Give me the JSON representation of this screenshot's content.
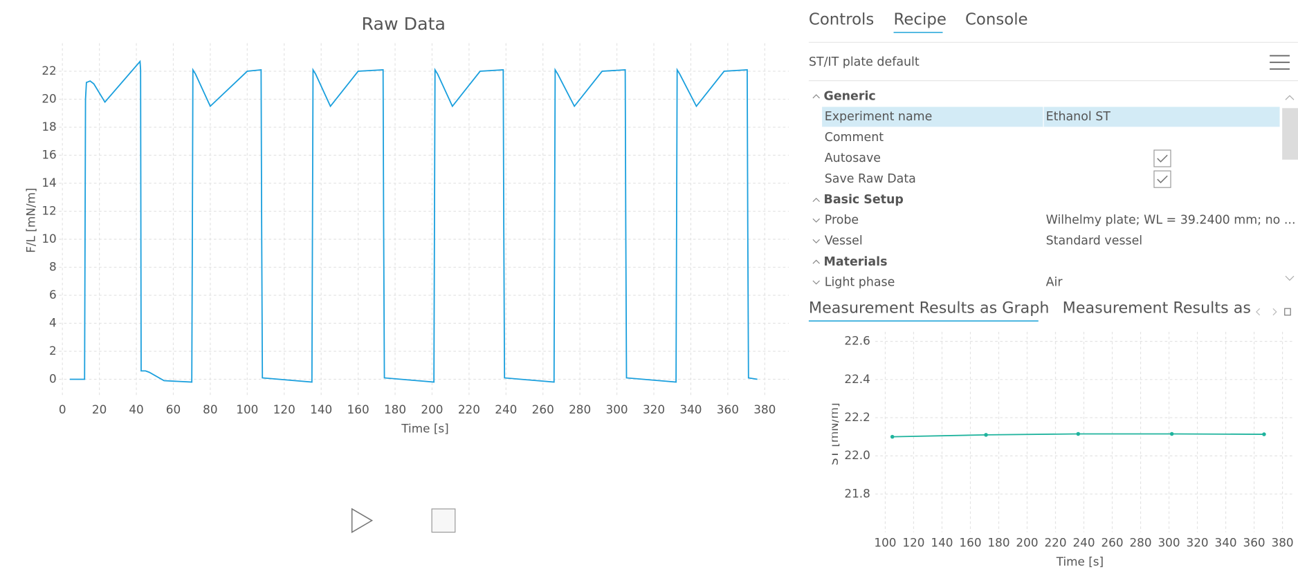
{
  "tabs": [
    "Controls",
    "Recipe",
    "Console"
  ],
  "active_tab": 1,
  "recipe_name": "ST/IT plate default",
  "property_groups": [
    {
      "name": "Generic",
      "rows": [
        {
          "name": "Experiment name",
          "value": "Ethanol ST",
          "selected": true
        },
        {
          "name": "Comment"
        },
        {
          "name": "Autosave",
          "checked": true
        },
        {
          "name": "Save Raw Data",
          "checked": true
        }
      ]
    },
    {
      "name": "Basic Setup",
      "rows": [
        {
          "name": "Probe",
          "value": "Wilhelmy plate; WL = 39.2400 mm; no ..."
        },
        {
          "name": "Vessel",
          "value": "Standard vessel"
        }
      ]
    },
    {
      "name": "Materials",
      "rows": [
        {
          "name": "Light phase",
          "value": "Air"
        }
      ]
    }
  ],
  "result_tabs": [
    "Measurement Results as Graph",
    "Measurement Results as T"
  ],
  "active_result_tab": 0,
  "chart_data": [
    {
      "type": "line",
      "title": "Raw Data",
      "x_label": "Time [s]",
      "y_label": "F/L [mN/m]",
      "color": "#1a9fdd",
      "grid": true,
      "x": [
        4,
        12,
        12.5,
        13,
        15,
        17,
        23,
        42,
        42.3,
        42.6,
        45,
        47,
        55,
        70,
        70.3,
        70.6,
        72,
        80,
        100,
        107.5,
        107.8,
        108.2,
        135,
        135.3,
        135.6,
        137,
        145,
        160,
        173.5,
        173.8,
        174.2,
        201,
        201.3,
        201.6,
        203,
        211,
        226,
        238.5,
        238.8,
        239.2,
        266,
        266.3,
        266.6,
        268,
        277,
        292,
        304.5,
        304.8,
        305.2,
        332,
        332.3,
        332.6,
        334,
        343,
        358,
        370.5,
        370.8,
        371.2,
        376
      ],
      "values": [
        0,
        0,
        20,
        21.2,
        21.3,
        21.1,
        19.8,
        22.7,
        22.1,
        0.6,
        0.6,
        0.5,
        -0.1,
        -0.2,
        10,
        22.1,
        21.8,
        19.5,
        22,
        22.1,
        11,
        0.1,
        -0.2,
        11,
        22.1,
        21.8,
        19.5,
        22,
        22.1,
        11,
        0.1,
        -0.2,
        11,
        22.1,
        21.8,
        19.5,
        22,
        22.1,
        11,
        0.1,
        -0.2,
        11,
        22.1,
        21.8,
        19.5,
        22,
        22.1,
        11,
        0.1,
        -0.2,
        11,
        22.1,
        21.8,
        19.5,
        22,
        22.1,
        11,
        0.1,
        0
      ],
      "xlim": [
        -4.5,
        393
      ],
      "ylim": [
        -1.3,
        24
      ],
      "xticks": [
        0,
        20,
        40,
        60,
        80,
        100,
        120,
        140,
        160,
        180,
        200,
        220,
        240,
        260,
        280,
        300,
        320,
        340,
        360,
        380
      ],
      "yticks": [
        0,
        2,
        4,
        6,
        8,
        10,
        12,
        14,
        16,
        18,
        20,
        22
      ]
    },
    {
      "type": "line",
      "x_label": "Time [s]",
      "y_label": "ST [mN/m]",
      "color": "#1fb39d",
      "grid": true,
      "markers": true,
      "x": [
        105,
        171,
        236,
        302,
        367
      ],
      "values": [
        22.1,
        22.11,
        22.115,
        22.115,
        22.113
      ],
      "xlim": [
        93,
        388
      ],
      "ylim": [
        21.6,
        22.65
      ],
      "xticks": [
        100,
        120,
        140,
        160,
        180,
        200,
        220,
        240,
        260,
        280,
        300,
        320,
        340,
        360,
        380
      ],
      "yticks": [
        {
          "value": 21.8,
          "label": "21.8"
        },
        {
          "value": 22,
          "label": "22.0"
        },
        {
          "value": 22.2,
          "label": "22.2"
        },
        {
          "value": 22.4,
          "label": "22.4"
        },
        {
          "value": 22.6,
          "label": "22.6"
        }
      ]
    }
  ]
}
